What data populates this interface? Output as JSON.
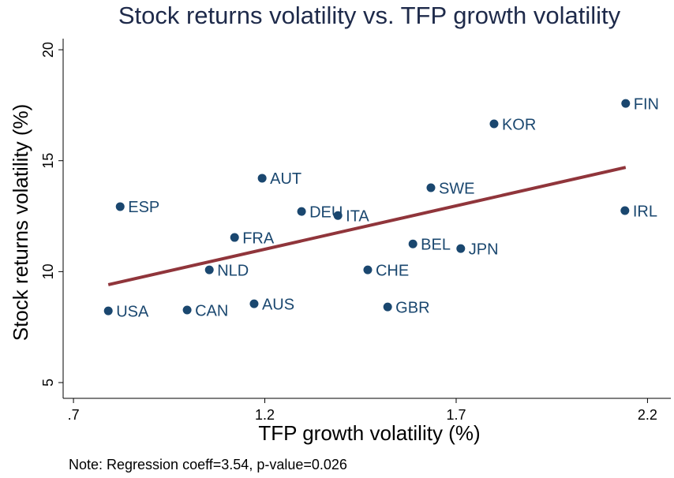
{
  "chart_data": {
    "type": "scatter",
    "title": "Stock returns volatility vs. TFP growth volatility",
    "x_label": "TFP growth volatility (%)",
    "y_label": "Stock returns volatility (%)",
    "note": "Note: Regression coeff=3.54, p-value=0.026",
    "labels": [
      "USA",
      "CAN",
      "AUS",
      "NLD",
      "FRA",
      "ESP",
      "AUT",
      "DEU",
      "ITA",
      "CHE",
      "GBR",
      "BEL",
      "JPN",
      "SWE",
      "KOR",
      "FIN",
      "IRL"
    ],
    "x": [
      0.791,
      0.997,
      1.172,
      1.055,
      1.121,
      0.822,
      1.193,
      1.296,
      1.391,
      1.469,
      1.521,
      1.587,
      1.712,
      1.634,
      1.799,
      2.143,
      2.141
    ],
    "y": [
      8.23,
      8.27,
      8.55,
      10.08,
      11.54,
      12.93,
      14.21,
      12.71,
      12.53,
      10.08,
      8.41,
      11.25,
      11.04,
      13.78,
      16.66,
      17.58,
      12.75
    ],
    "color": "#1a476f",
    "fit_line": {
      "x": [
        0.791,
        2.143
      ],
      "y": [
        9.41,
        14.7
      ],
      "color": "#90353b"
    },
    "xlim": [
      0.673,
      2.261
    ],
    "ylim": [
      4.29,
      20.5
    ],
    "xticks": [
      {
        "value": 0.7,
        "label": ".7"
      },
      1.2,
      1.7,
      2.2
    ],
    "yticks": [
      5,
      10,
      15,
      20
    ]
  }
}
